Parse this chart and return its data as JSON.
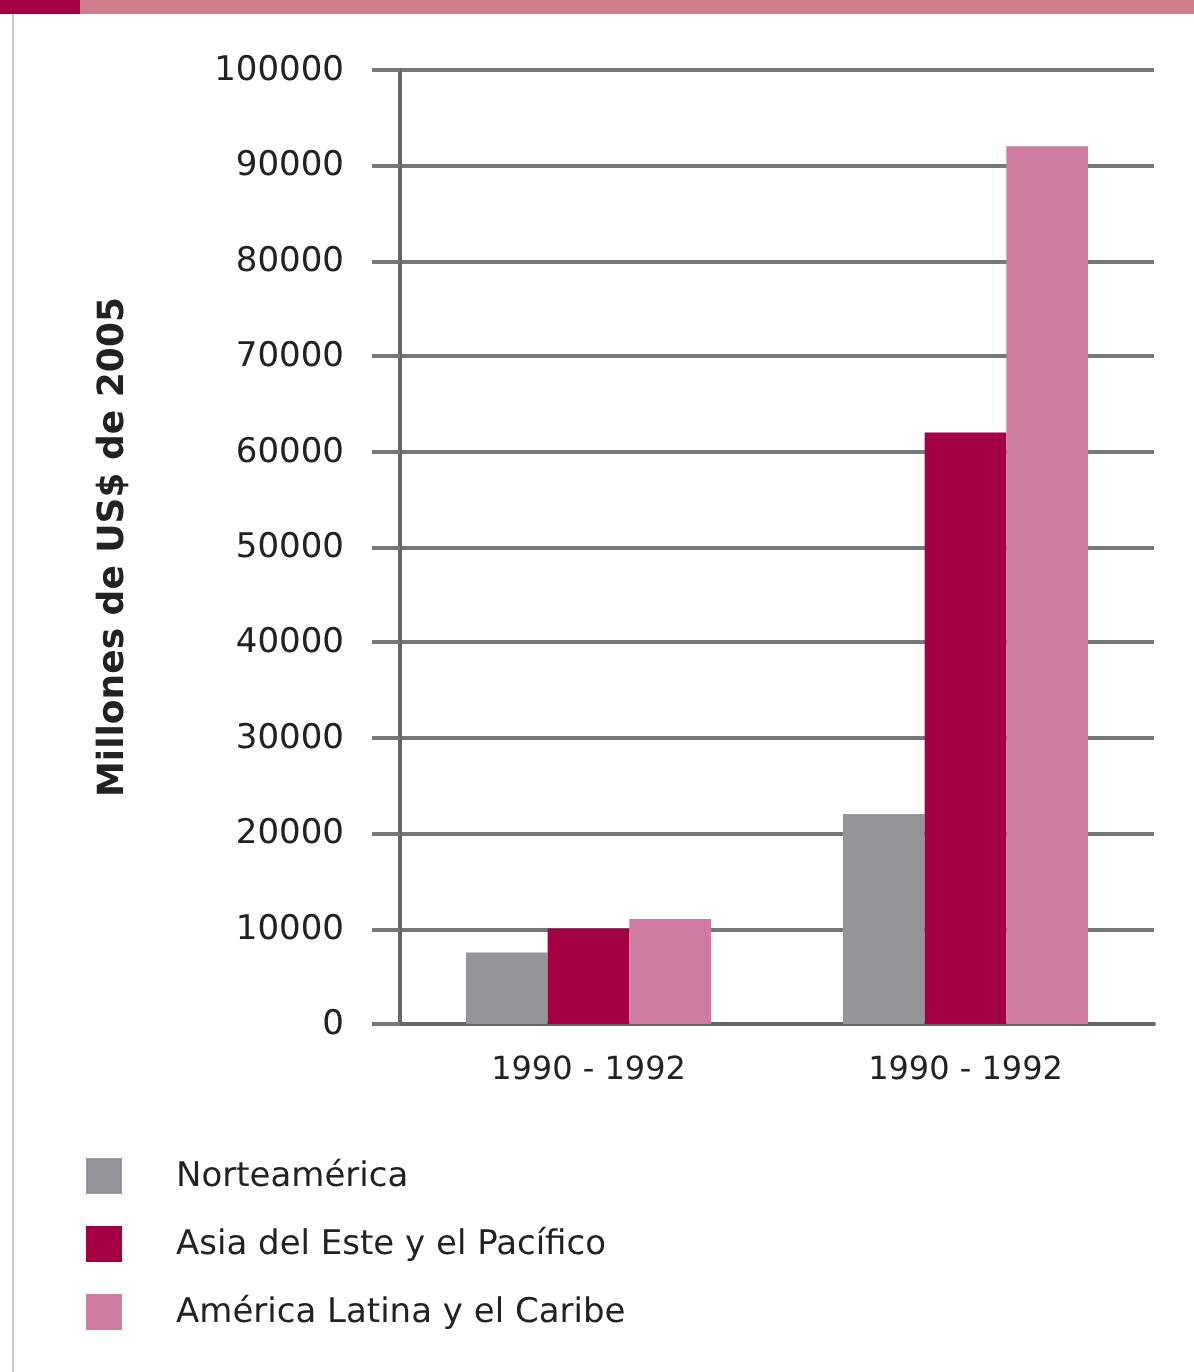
{
  "chart_data": {
    "type": "bar",
    "ylabel": "Millones de US$ de 2005",
    "categories": [
      "1990 - 1992",
      "1990 - 1992"
    ],
    "series": [
      {
        "name": "Norteamérica",
        "color": "#939598",
        "values": [
          7500,
          22000
        ]
      },
      {
        "name": "Asia del Este y el Pacífico",
        "color": "#a50044",
        "values": [
          10000,
          62000
        ]
      },
      {
        "name": "América Latina y el Caribe",
        "color": "#d07ca2",
        "values": [
          11000,
          92000
        ]
      }
    ],
    "ylim": [
      0,
      100000
    ],
    "yticks": [
      0,
      10000,
      20000,
      30000,
      40000,
      50000,
      60000,
      70000,
      80000,
      90000,
      100000
    ],
    "grid": "y",
    "legend": "bottom left"
  }
}
